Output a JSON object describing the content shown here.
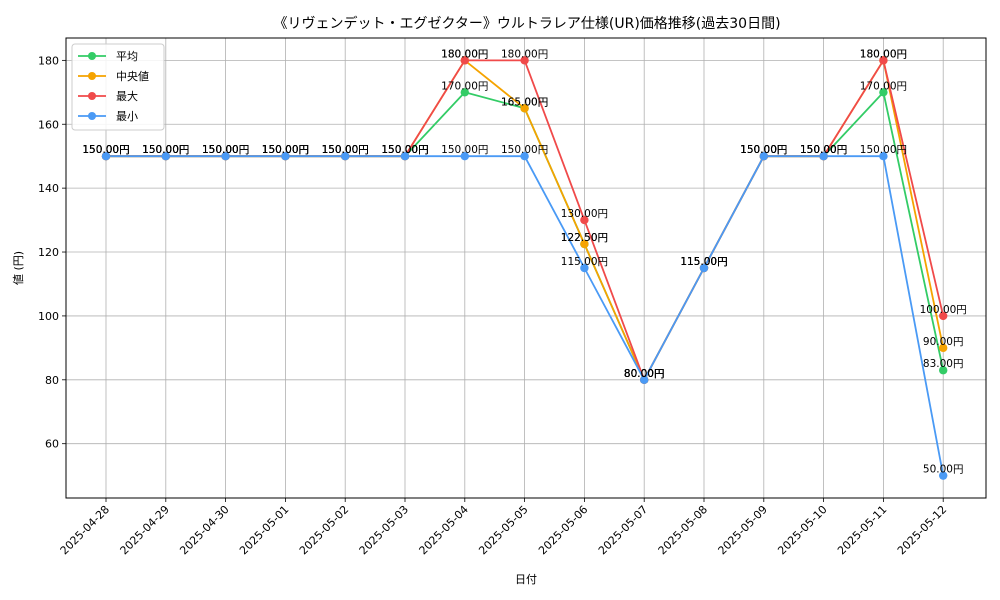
{
  "chart_data": {
    "type": "line",
    "title": "《リヴェンデット・エグゼクター》ウルトラレア仕様(UR)価格推移(過去30日間)",
    "xlabel": "日付",
    "ylabel": "値 (円)",
    "ylim": [
      43,
      187
    ],
    "yticks": [
      60,
      80,
      100,
      120,
      140,
      160,
      180
    ],
    "grid": true,
    "legend_position": "top-left",
    "value_suffix": "円",
    "x": [
      "2025-04-28",
      "2025-04-29",
      "2025-04-30",
      "2025-05-01",
      "2025-05-02",
      "2025-05-03",
      "2025-05-04",
      "2025-05-05",
      "2025-05-06",
      "2025-05-07",
      "2025-05-08",
      "2025-05-09",
      "2025-05-10",
      "2025-05-11",
      "2025-05-12"
    ],
    "series": [
      {
        "name": "平均",
        "color": "#33cc66",
        "values": [
          150,
          150,
          150,
          150,
          150,
          150,
          170,
          165,
          122.5,
          80,
          115,
          150,
          150,
          170,
          83
        ]
      },
      {
        "name": "中央値",
        "color": "#f5a300",
        "values": [
          150,
          150,
          150,
          150,
          150,
          150,
          180,
          165,
          122.5,
          80,
          115,
          150,
          150,
          180,
          90
        ]
      },
      {
        "name": "最大",
        "color": "#f04a4a",
        "values": [
          150,
          150,
          150,
          150,
          150,
          150,
          180,
          180,
          130,
          80,
          115,
          150,
          150,
          180,
          100
        ]
      },
      {
        "name": "最小",
        "color": "#4a9af5",
        "values": [
          150,
          150,
          150,
          150,
          150,
          150,
          150,
          150,
          115,
          80,
          115,
          150,
          150,
          150,
          50
        ]
      }
    ]
  }
}
